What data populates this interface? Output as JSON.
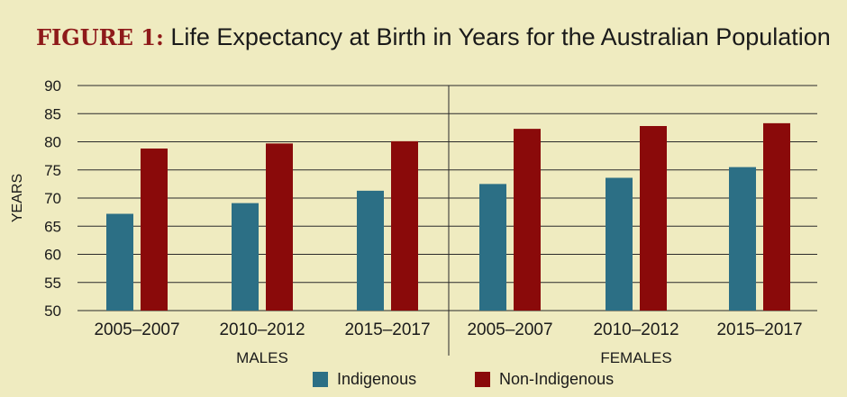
{
  "title": {
    "prefix": "FIGURE 1:",
    "text": "Life Expectancy at Birth in Years for the Australian Population"
  },
  "colors": {
    "background": "#efebc0",
    "indigenous": "#2c6f85",
    "non_indigenous": "#8a0a0a",
    "grid": "#2a2a2a",
    "title_prefix": "#8e1a1a"
  },
  "legend": [
    {
      "label": "Indigenous",
      "color": "#2c6f85"
    },
    {
      "label": "Non-Indigenous",
      "color": "#8a0a0a"
    }
  ],
  "chart_data": {
    "type": "bar",
    "ylabel": "YEARS",
    "xlabel": "",
    "ylim": [
      50,
      90
    ],
    "yticks": [
      50,
      55,
      60,
      65,
      70,
      75,
      80,
      85,
      90
    ],
    "grid": true,
    "legend_position": "bottom",
    "groups": [
      {
        "name": "MALES",
        "categories": [
          "2005–2007",
          "2010–2012",
          "2015–2017"
        ],
        "series": [
          {
            "name": "Indigenous",
            "values": [
              67.2,
              69.1,
              71.3
            ]
          },
          {
            "name": "Non-Indigenous",
            "values": [
              78.8,
              79.7,
              80.1
            ]
          }
        ]
      },
      {
        "name": "FEMALES",
        "categories": [
          "2005–2007",
          "2010–2012",
          "2015–2017"
        ],
        "series": [
          {
            "name": "Indigenous",
            "values": [
              72.5,
              73.6,
              75.5
            ]
          },
          {
            "name": "Non-Indigenous",
            "values": [
              82.3,
              82.8,
              83.3
            ]
          }
        ]
      }
    ]
  }
}
